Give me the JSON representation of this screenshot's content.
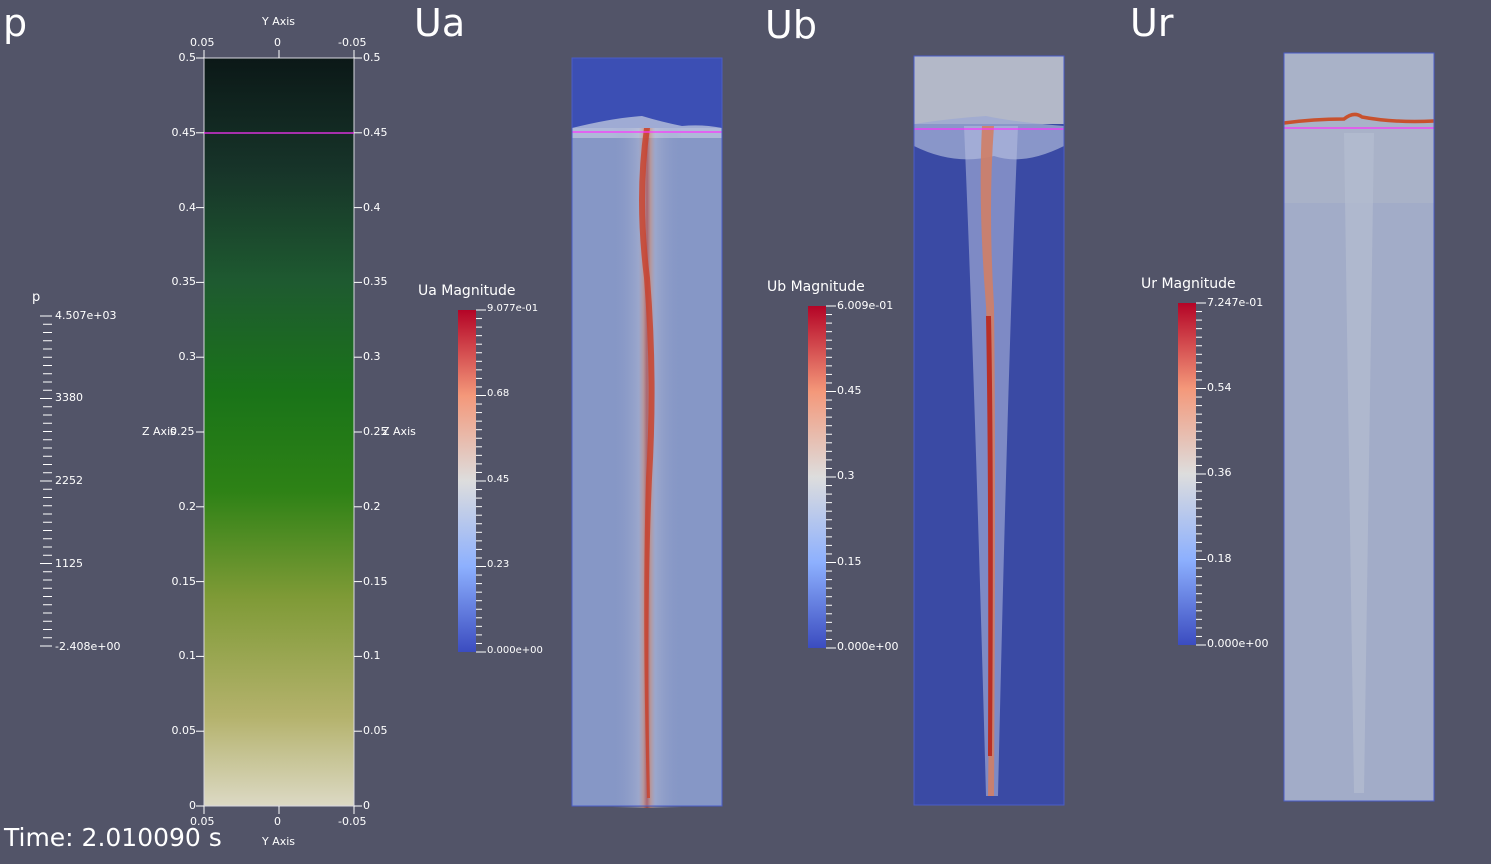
{
  "panels": {
    "p": {
      "title": "p",
      "legend": {
        "title": "p",
        "labels": [
          "4.507e+03",
          "3380",
          "2252",
          "1125",
          "-2.408e+00"
        ]
      },
      "axes": {
        "y_axis_label_top": "Y Axis",
        "y_axis_label_bottom": "Y Axis",
        "z_axis_label_left": "Z Axis",
        "z_axis_label_right": "Z Axis",
        "y_ticks_top": [
          "0.05",
          "0",
          "-0.05"
        ],
        "y_ticks_bottom": [
          "0.05",
          "0",
          "-0.05"
        ],
        "z_ticks_left": [
          "0.5",
          "0.45",
          "0.4",
          "0.35",
          "0.3",
          "0.25",
          "0.2",
          "0.15",
          "0.1",
          "0.05",
          "0"
        ],
        "z_ticks_right": [
          "0.5",
          "0.45",
          "0.4",
          "0.35",
          "0.3",
          "0.25",
          "0.2",
          "0.15",
          "0.1",
          "0.05",
          "0"
        ]
      }
    },
    "ua": {
      "title": "Ua",
      "legend": {
        "title": "Ua Magnitude",
        "labels": [
          "9.077e-01",
          "0.68",
          "0.45",
          "0.23",
          "0.000e+00"
        ]
      }
    },
    "ub": {
      "title": "Ub",
      "legend": {
        "title": "Ub Magnitude",
        "labels": [
          "6.009e-01",
          "0.45",
          "0.3",
          "0.15",
          "0.000e+00"
        ]
      }
    },
    "ur": {
      "title": "Ur",
      "legend": {
        "title": "Ur Magnitude",
        "labels": [
          "7.247e-01",
          "0.54",
          "0.36",
          "0.18",
          "0.000e+00"
        ]
      }
    }
  },
  "time_label": "Time: 2.010090 s",
  "colors": {
    "background": "#525468",
    "interface_line": "#ff33ff",
    "colormap_low": "#3b4cc0",
    "colormap_mid": "#dddddd",
    "colormap_high": "#b40426"
  }
}
